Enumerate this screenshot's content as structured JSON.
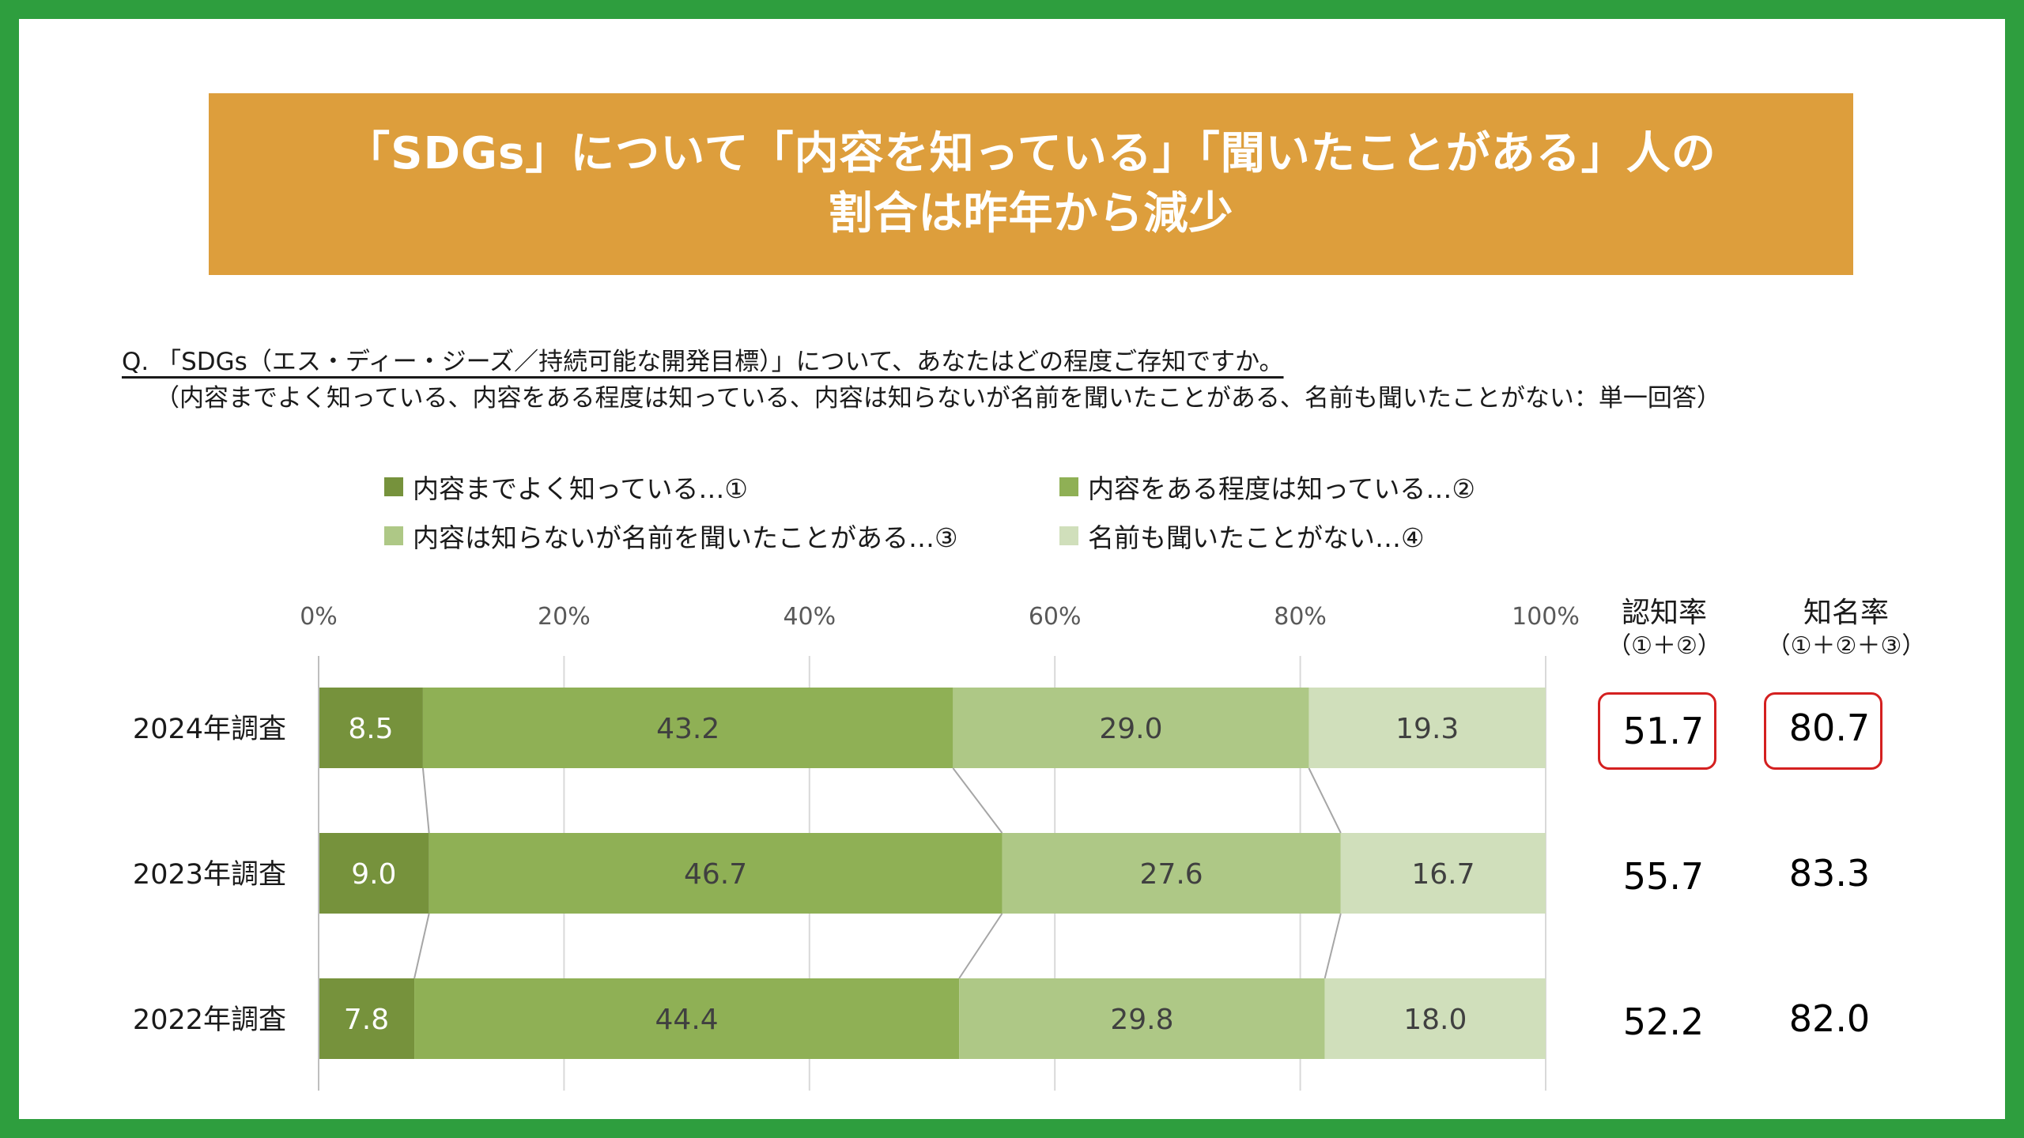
{
  "title": {
    "line1": "「SDGs」について「内容を知っている」「聞いたことがある」人の",
    "line2": "割合は昨年から減少"
  },
  "question": "Q. 「SDGs（エス・ディー・ジーズ／持続可能な開発目標）」について、あなたはどの程度ご存知ですか。",
  "note": "（内容までよく知っている、内容をある程度は知っている、内容は知らないが名前を聞いたことがある、名前も聞いたことがない：単一回答）",
  "legend": [
    {
      "label": "内容までよく知っている…①",
      "color": "#76923c"
    },
    {
      "label": "内容をある程度は知っている…②",
      "color": "#8fb055"
    },
    {
      "label": "内容は知らないが名前を聞いたことがある…③",
      "color": "#aec886"
    },
    {
      "label": "名前も聞いたことがない…④",
      "color": "#d0dfbb"
    }
  ],
  "columns": {
    "awareness": {
      "title": "認知率",
      "formula": "（①＋②）"
    },
    "recognition": {
      "title": "知名率",
      "formula": "（①＋②＋③）"
    }
  },
  "chart_data": {
    "type": "bar",
    "orientation": "horizontal-stacked-100",
    "categories": [
      "2024年調査",
      "2023年調査",
      "2022年調査"
    ],
    "series": [
      {
        "name": "内容までよく知っている…①",
        "values": [
          8.5,
          9.0,
          7.8
        ],
        "labels": [
          "8.5",
          "9.0",
          "7.8"
        ],
        "color": "#76923c"
      },
      {
        "name": "内容をある程度は知っている…②",
        "values": [
          43.2,
          46.7,
          44.4
        ],
        "labels": [
          "43.2",
          "46.7",
          "44.4"
        ],
        "color": "#8fb055"
      },
      {
        "name": "内容は知らないが名前を聞いたことがある…③",
        "values": [
          29.0,
          27.6,
          29.8
        ],
        "labels": [
          "29.0",
          "27.6",
          "29.8"
        ],
        "color": "#aec886"
      },
      {
        "name": "名前も聞いたことがない…④",
        "values": [
          19.3,
          16.7,
          18.0
        ],
        "labels": [
          "19.3",
          "16.7",
          "18.0"
        ],
        "color": "#d0dfbb"
      }
    ],
    "xlim": [
      0,
      100
    ],
    "x_ticks": [
      "0%",
      "20%",
      "40%",
      "60%",
      "80%",
      "100%"
    ],
    "grid": true,
    "awareness_rate": [
      "51.7",
      "55.7",
      "52.2"
    ],
    "recognition_rate": [
      "80.7",
      "83.3",
      "82.0"
    ],
    "highlighted_category": "2024年調査"
  }
}
